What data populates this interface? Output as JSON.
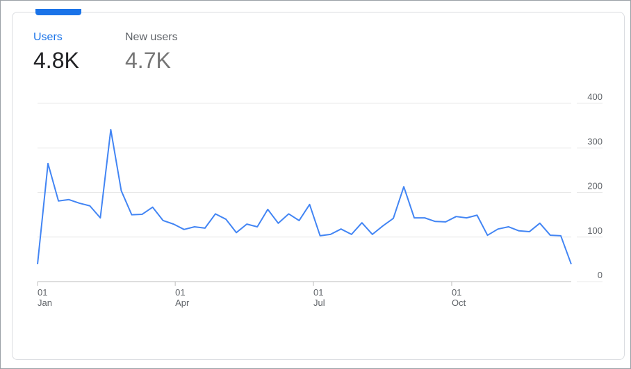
{
  "metrics": [
    {
      "label": "Users",
      "value": "4.8K"
    },
    {
      "label": "New users",
      "value": "4.7K"
    }
  ],
  "chart_data": {
    "type": "line",
    "color": "#4285f4",
    "values": [
      39,
      265,
      181,
      184,
      176,
      170,
      143,
      341,
      204,
      150,
      151,
      167,
      137,
      129,
      117,
      123,
      120,
      152,
      140,
      110,
      129,
      123,
      162,
      131,
      152,
      137,
      173,
      103,
      106,
      118,
      106,
      132,
      106,
      125,
      142,
      213,
      143,
      143,
      135,
      134,
      146,
      143,
      149,
      104,
      118,
      123,
      114,
      112,
      131,
      104,
      103,
      39
    ],
    "x_labels": [
      {
        "day": "01",
        "month": "Jan"
      },
      {
        "day": "01",
        "month": "Apr"
      },
      {
        "day": "01",
        "month": "Jul"
      },
      {
        "day": "01",
        "month": "Oct"
      }
    ],
    "ylim": [
      0,
      400
    ],
    "yticks": [
      0,
      100,
      200,
      300,
      400
    ],
    "grid": true
  }
}
